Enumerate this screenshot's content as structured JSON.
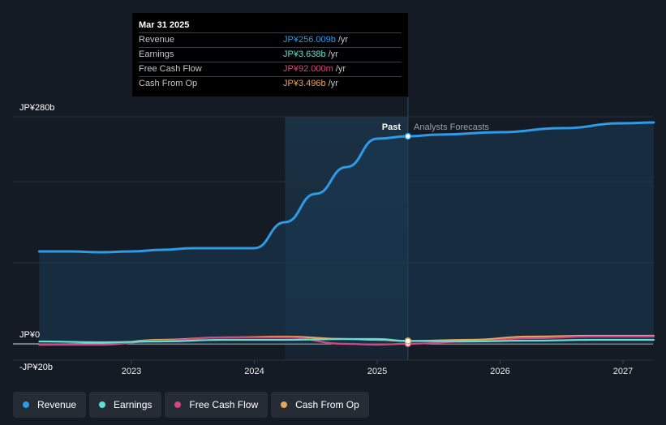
{
  "tooltip": {
    "date": "Mar 31 2025",
    "rows": [
      {
        "label": "Revenue",
        "value": "JP¥256.009b",
        "unit": "/yr"
      },
      {
        "label": "Earnings",
        "value": "JP¥3.638b",
        "unit": "/yr"
      },
      {
        "label": "Free Cash Flow",
        "value": "JP¥92.000m",
        "unit": "/yr"
      },
      {
        "label": "Cash From Op",
        "value": "JP¥3.496b",
        "unit": "/yr"
      }
    ]
  },
  "labels": {
    "past": "Past",
    "forecast": "Analysts Forecasts"
  },
  "legend": [
    {
      "label": "Revenue",
      "color": "#2d9be6"
    },
    {
      "label": "Earnings",
      "color": "#5fe0d0"
    },
    {
      "label": "Free Cash Flow",
      "color": "#d6457f"
    },
    {
      "label": "Cash From Op",
      "color": "#e8a55c"
    }
  ],
  "chart_data": {
    "type": "line",
    "y_ticks": [
      "JP¥280b",
      "JP¥0",
      "-JP¥20b"
    ],
    "y_tick_values": [
      280,
      0,
      -20
    ],
    "ylim": [
      -20,
      280
    ],
    "x_ticks": [
      "2023",
      "2024",
      "2025",
      "2026",
      "2027"
    ],
    "x_tick_values": [
      2023,
      2024,
      2025,
      2026,
      2027
    ],
    "xlim": [
      2022.0,
      2027.25
    ],
    "past_start": 2024.25,
    "divider": 2025.25,
    "series": [
      {
        "name": "Revenue",
        "color": "#2d9be6",
        "area": true,
        "x": [
          2022.25,
          2022.5,
          2022.75,
          2023.0,
          2023.25,
          2023.5,
          2023.75,
          2024.0,
          2024.25,
          2024.5,
          2024.75,
          2025.0,
          2025.25,
          2025.5,
          2026.0,
          2026.5,
          2027.0,
          2027.25
        ],
        "y": [
          114,
          114,
          113,
          114,
          116,
          118,
          118,
          118,
          150,
          185,
          218,
          253,
          256,
          258,
          261,
          266,
          272,
          273
        ]
      },
      {
        "name": "Earnings",
        "color": "#5fe0d0",
        "area": false,
        "x": [
          2022.25,
          2022.75,
          2023.25,
          2023.75,
          2024.25,
          2024.75,
          2025.0,
          2025.25,
          2025.75,
          2026.25,
          2026.75,
          2027.25
        ],
        "y": [
          3,
          2,
          3,
          5,
          5,
          6,
          6,
          3.6,
          3,
          4,
          5,
          5
        ]
      },
      {
        "name": "Free Cash Flow",
        "color": "#d6457f",
        "area": false,
        "x": [
          2022.25,
          2022.75,
          2023.25,
          2023.75,
          2024.25,
          2024.75,
          2025.0,
          2025.25,
          2025.75,
          2026.25,
          2026.75,
          2027.25
        ],
        "y": [
          -1,
          -1,
          4,
          8,
          8,
          0,
          -1,
          0.1,
          3,
          7,
          9,
          9
        ]
      },
      {
        "name": "Cash From Op",
        "color": "#e8a55c",
        "area": false,
        "x": [
          2022.25,
          2022.75,
          2023.25,
          2023.75,
          2024.25,
          2024.75,
          2025.0,
          2025.25,
          2025.75,
          2026.25,
          2026.75,
          2027.25
        ],
        "y": [
          -1,
          0,
          5,
          8,
          9,
          6,
          5,
          3.5,
          5,
          9,
          10,
          10
        ]
      }
    ],
    "highlight_x": 2025.25,
    "grid": true
  }
}
